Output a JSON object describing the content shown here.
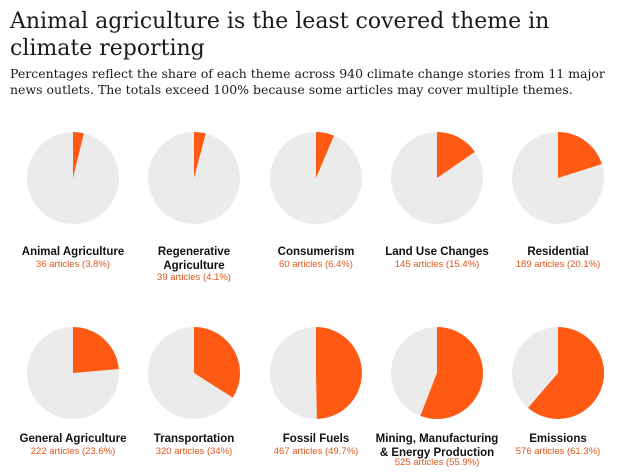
{
  "title": "Animal agriculture is the least covered theme in climate reporting",
  "subtitle": "Percentages reflect the share of each theme across 940 climate change stories from 11 major news outlets. The totals exceed 100% because some articles may cover multiple themes.",
  "colors": {
    "highlight": "#ff5a14",
    "rest": "#ebebeb",
    "sublabel": "#e0561b"
  },
  "chart_data": {
    "type": "pie",
    "title": "Animal agriculture is the least covered theme in climate reporting",
    "total_stories": 940,
    "items": [
      {
        "label": "Animal Agriculture",
        "articles": 36,
        "percent": 3.8,
        "sublabel": "36 articles (3.8%)"
      },
      {
        "label": "Regenerative Agriculture",
        "articles": 39,
        "percent": 4.1,
        "sublabel": "39 articles (4.1%)"
      },
      {
        "label": "Consumerism",
        "articles": 60,
        "percent": 6.4,
        "sublabel": "60 articles (6.4%)"
      },
      {
        "label": "Land Use Changes",
        "articles": 145,
        "percent": 15.4,
        "sublabel": "145 articles (15.4%)"
      },
      {
        "label": "Residential",
        "articles": 189,
        "percent": 20.1,
        "sublabel": "189 articles (20.1%)"
      },
      {
        "label": "General Agriculture",
        "articles": 222,
        "percent": 23.6,
        "sublabel": "222 articles (23.6%)"
      },
      {
        "label": "Transportation",
        "articles": 320,
        "percent": 34,
        "sublabel": "320 articles (34%)"
      },
      {
        "label": "Fossil Fuels",
        "articles": 467,
        "percent": 49.7,
        "sublabel": "467 articles (49.7%)"
      },
      {
        "label": "Mining, Manufacturing & Energy Production",
        "articles": 525,
        "percent": 55.9,
        "sublabel": "525 articles (55.9%)"
      },
      {
        "label": "Emissions",
        "articles": 576,
        "percent": 61.3,
        "sublabel": "576 articles (61.3%)"
      }
    ]
  }
}
